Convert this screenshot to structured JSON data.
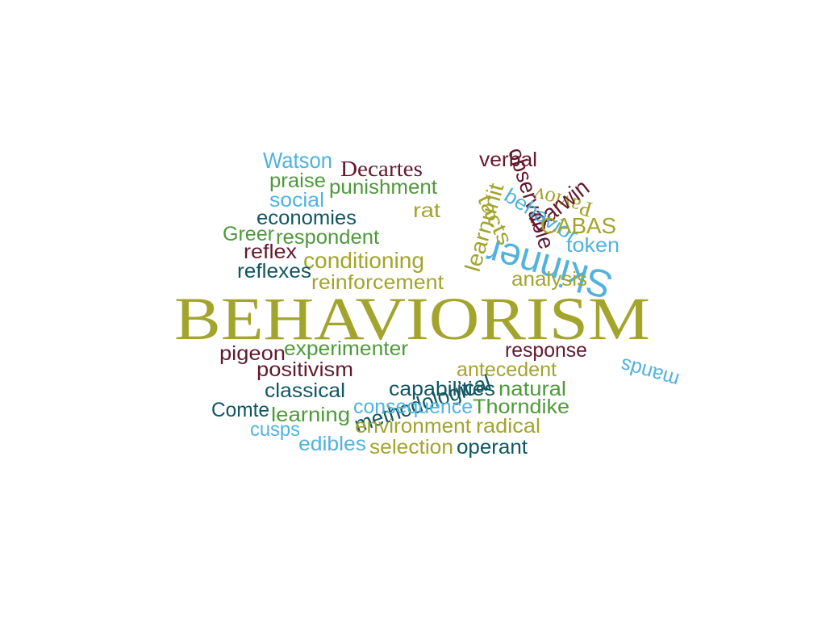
{
  "colors": {
    "background": "#ffffff",
    "olive": "#a3a42c",
    "green": "#4e9a3a",
    "sky": "#4fb3dd",
    "maroon": "#64192f",
    "teal": "#0f5661"
  },
  "words": [
    {
      "text": "BEHAVIORISM",
      "color": "olive",
      "font": "serif"
    },
    {
      "text": "Watson",
      "color": "sky",
      "font": "sans"
    },
    {
      "text": "Decartes",
      "color": "maroon",
      "font": "serif"
    },
    {
      "text": "verbal",
      "color": "maroon",
      "font": "sans"
    },
    {
      "text": "praise",
      "color": "green",
      "font": "sans"
    },
    {
      "text": "punishment",
      "color": "green",
      "font": "sans"
    },
    {
      "text": "social",
      "color": "sky",
      "font": "sans"
    },
    {
      "text": "Pavlov",
      "color": "olive",
      "font": "serif"
    },
    {
      "text": "Darwin",
      "color": "maroon",
      "font": "sans"
    },
    {
      "text": "learnunit",
      "color": "olive",
      "font": "sans"
    },
    {
      "text": "rat",
      "color": "olive",
      "font": "sans"
    },
    {
      "text": "Skinner",
      "color": "sky",
      "font": "sans"
    },
    {
      "text": "observable",
      "color": "maroon",
      "font": "sans"
    },
    {
      "text": "tacts",
      "color": "olive",
      "font": "sans"
    },
    {
      "text": "economies",
      "color": "teal",
      "font": "sans"
    },
    {
      "text": "Greer",
      "color": "green",
      "font": "sans"
    },
    {
      "text": "respondent",
      "color": "green",
      "font": "sans"
    },
    {
      "text": "behavior",
      "color": "sky",
      "font": "sans"
    },
    {
      "text": "CABAS",
      "color": "olive",
      "font": "sans"
    },
    {
      "text": "token",
      "color": "sky",
      "font": "sans"
    },
    {
      "text": "reflex",
      "color": "maroon",
      "font": "sans"
    },
    {
      "text": "conditioning",
      "color": "olive",
      "font": "sans"
    },
    {
      "text": "reflexes",
      "color": "teal",
      "font": "sans"
    },
    {
      "text": "reinforcement",
      "color": "olive",
      "font": "sans"
    },
    {
      "text": "analysis",
      "color": "olive",
      "font": "sans"
    },
    {
      "text": "pigeon",
      "color": "maroon",
      "font": "sans"
    },
    {
      "text": "experimenter",
      "color": "green",
      "font": "sans"
    },
    {
      "text": "methodological",
      "color": "teal",
      "font": "sans"
    },
    {
      "text": "response",
      "color": "maroon",
      "font": "sans"
    },
    {
      "text": "mands",
      "color": "sky",
      "font": "sans"
    },
    {
      "text": "positivism",
      "color": "maroon",
      "font": "sans"
    },
    {
      "text": "antecedent",
      "color": "olive",
      "font": "sans"
    },
    {
      "text": "classical",
      "color": "teal",
      "font": "sans"
    },
    {
      "text": "capabilities",
      "color": "teal",
      "font": "sans"
    },
    {
      "text": "natural",
      "color": "green",
      "font": "sans"
    },
    {
      "text": "Comte",
      "color": "teal",
      "font": "sans"
    },
    {
      "text": "learning",
      "color": "green",
      "font": "sans"
    },
    {
      "text": "consequence",
      "color": "sky",
      "font": "sans"
    },
    {
      "text": "Thorndike",
      "color": "green",
      "font": "sans"
    },
    {
      "text": "cusps",
      "color": "sky",
      "font": "sans"
    },
    {
      "text": "environment",
      "color": "olive",
      "font": "sans"
    },
    {
      "text": "radical",
      "color": "olive",
      "font": "sans"
    },
    {
      "text": "edibles",
      "color": "sky",
      "font": "sans"
    },
    {
      "text": "selection",
      "color": "olive",
      "font": "sans"
    },
    {
      "text": "operant",
      "color": "teal",
      "font": "sans"
    }
  ]
}
